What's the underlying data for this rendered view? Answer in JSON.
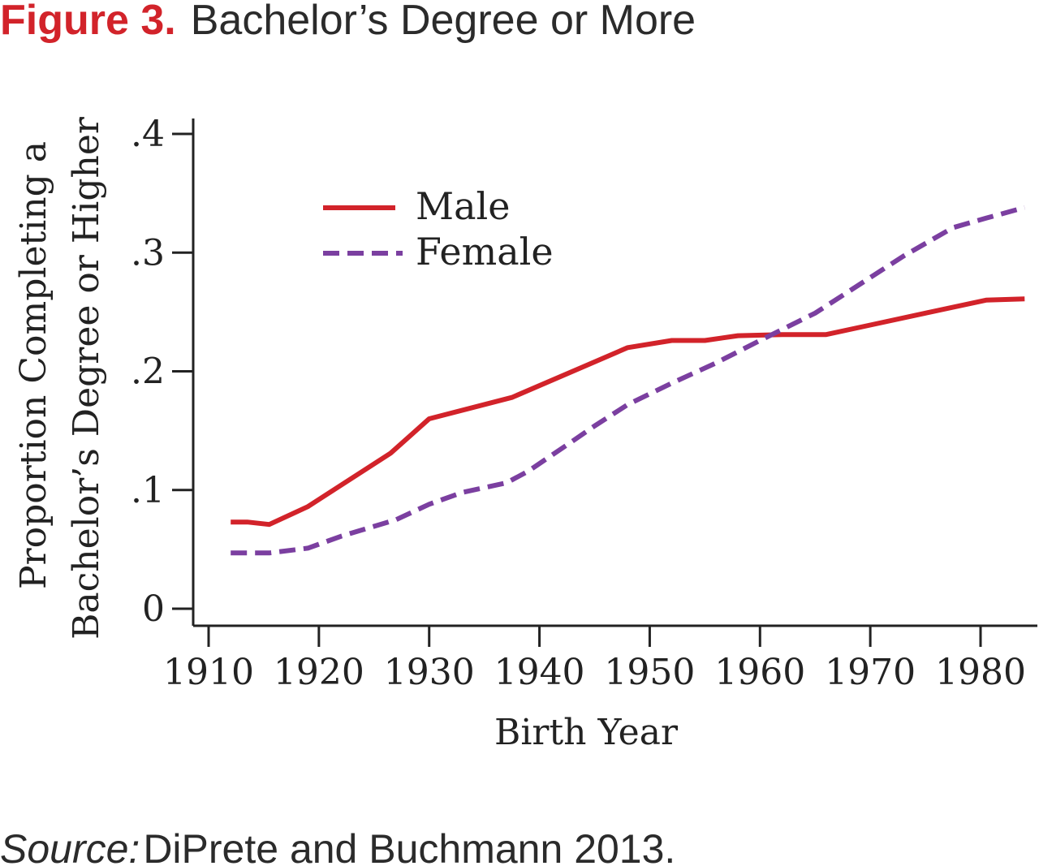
{
  "figure": {
    "label": "Figure 3.",
    "title": "Bachelor’s Degree or More"
  },
  "source": {
    "prefix": "Source:",
    "text": " DiPrete and Buchmann 2013."
  },
  "colors": {
    "accent": "#d2232a",
    "male": "#d2232a",
    "female": "#7b3fa0",
    "text": "#222222",
    "axis": "#222222"
  },
  "chart_data": {
    "type": "line",
    "title": "",
    "xlabel": "Birth Year",
    "ylabel_lines": [
      "Proportion Completing a",
      "Bachelor’s Degree or Higher"
    ],
    "xlim": [
      1908.5,
      1985
    ],
    "ylim": [
      -0.015,
      0.41
    ],
    "x_ticks": [
      1910,
      1920,
      1930,
      1940,
      1950,
      1960,
      1970,
      1980
    ],
    "x_tick_labels": [
      "1910",
      "1920",
      "1930",
      "1940",
      "1950",
      "1960",
      "1970",
      "1980"
    ],
    "y_ticks": [
      0,
      0.1,
      0.2,
      0.3,
      0.4
    ],
    "y_tick_labels": [
      "0",
      ".1",
      ".2",
      ".3",
      ".4"
    ],
    "grid": false,
    "legend_position": "top-left",
    "series": [
      {
        "name": "Male",
        "style": "solid",
        "x": [
          1912,
          1913.5,
          1915.5,
          1919,
          1922,
          1926.5,
          1930,
          1937.5,
          1944,
          1948,
          1952,
          1955,
          1958,
          1962,
          1966,
          1970,
          1975,
          1980.5,
          1984
        ],
        "y": [
          0.073,
          0.073,
          0.071,
          0.086,
          0.104,
          0.131,
          0.16,
          0.178,
          0.204,
          0.22,
          0.226,
          0.226,
          0.23,
          0.231,
          0.231,
          0.239,
          0.249,
          0.26,
          0.261
        ]
      },
      {
        "name": "Female",
        "style": "dashed",
        "x": [
          1912,
          1915.5,
          1919,
          1922,
          1927,
          1930,
          1933,
          1937,
          1939,
          1942.5,
          1945,
          1948,
          1952,
          1956,
          1960,
          1965,
          1970,
          1973,
          1977.5,
          1980.5,
          1984
        ],
        "y": [
          0.047,
          0.047,
          0.051,
          0.061,
          0.075,
          0.088,
          0.098,
          0.106,
          0.116,
          0.138,
          0.154,
          0.172,
          0.19,
          0.207,
          0.226,
          0.249,
          0.279,
          0.297,
          0.321,
          0.329,
          0.338
        ]
      }
    ]
  }
}
